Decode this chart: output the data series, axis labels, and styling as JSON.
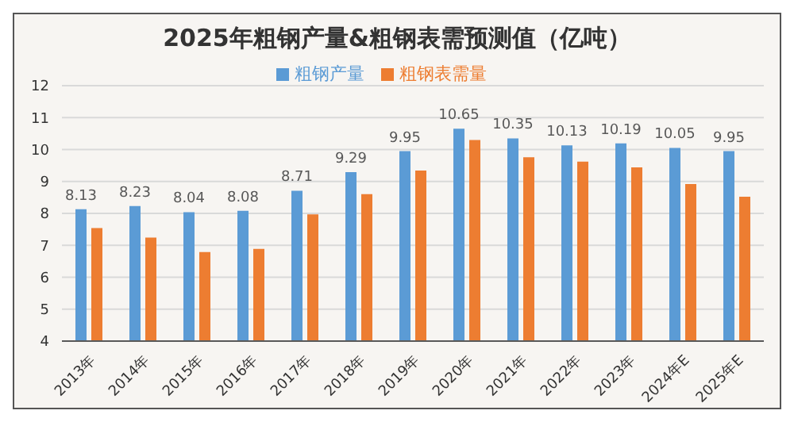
{
  "chart_data": {
    "type": "bar",
    "title": "2025年粗钢产量&粗钢表需预测值（亿吨）",
    "categories": [
      "2013年",
      "2014年",
      "2015年",
      "2016年",
      "2017年",
      "2018年",
      "2019年",
      "2020年",
      "2021年",
      "2022年",
      "2023年",
      "2024年E",
      "2025年E"
    ],
    "series": [
      {
        "name": "粗钢产量",
        "color": "#5b9bd5",
        "values": [
          8.13,
          8.23,
          8.04,
          8.08,
          8.71,
          9.29,
          9.95,
          10.65,
          10.35,
          10.13,
          10.19,
          10.05,
          9.95
        ],
        "value_labels": [
          "8.13",
          "8.23",
          "8.04",
          "8.08",
          "8.71",
          "9.29",
          "9.95",
          "10.65",
          "10.35",
          "10.13",
          "10.19",
          "10.05",
          "9.95"
        ]
      },
      {
        "name": "粗钢表需量",
        "color": "#ed7d31",
        "values": [
          7.54,
          7.24,
          6.79,
          6.89,
          7.97,
          8.6,
          9.34,
          10.3,
          9.76,
          9.62,
          9.44,
          8.92,
          8.52
        ]
      }
    ],
    "ylim": [
      4,
      12
    ],
    "yticks": [
      4,
      5,
      6,
      7,
      8,
      9,
      10,
      11,
      12
    ],
    "grid": "y",
    "legend": "top"
  }
}
